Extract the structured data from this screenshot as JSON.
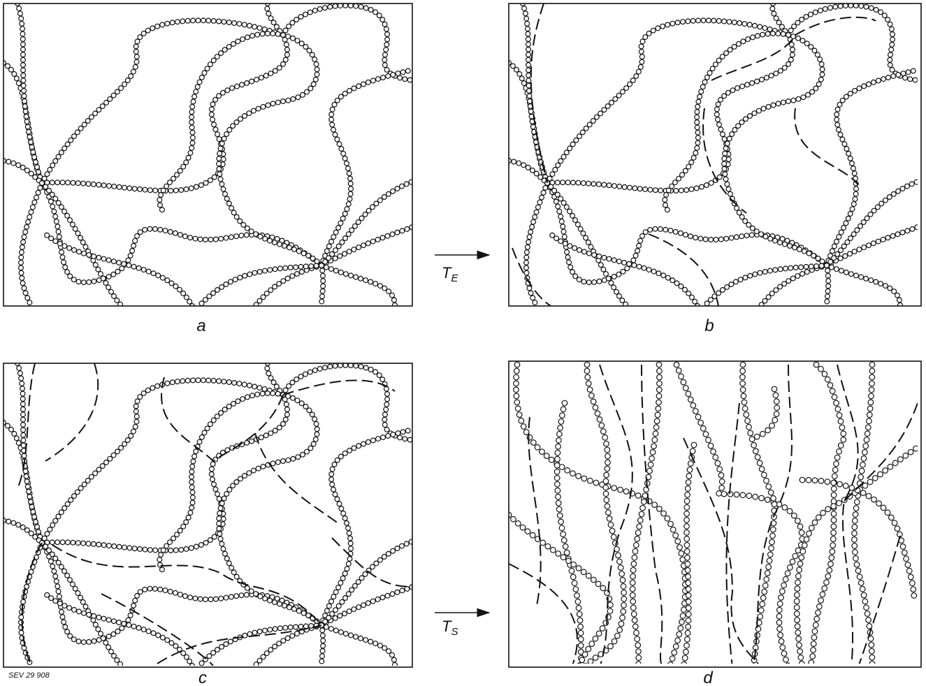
{
  "panels": [
    {
      "label": "a"
    },
    {
      "label": "b"
    },
    {
      "label": "c"
    },
    {
      "label": "d"
    }
  ],
  "arrows": [
    {
      "symbol": "T",
      "subscript": "E"
    },
    {
      "symbol": "T",
      "subscript": "S"
    }
  ],
  "figure_id": "SEV 29 908"
}
